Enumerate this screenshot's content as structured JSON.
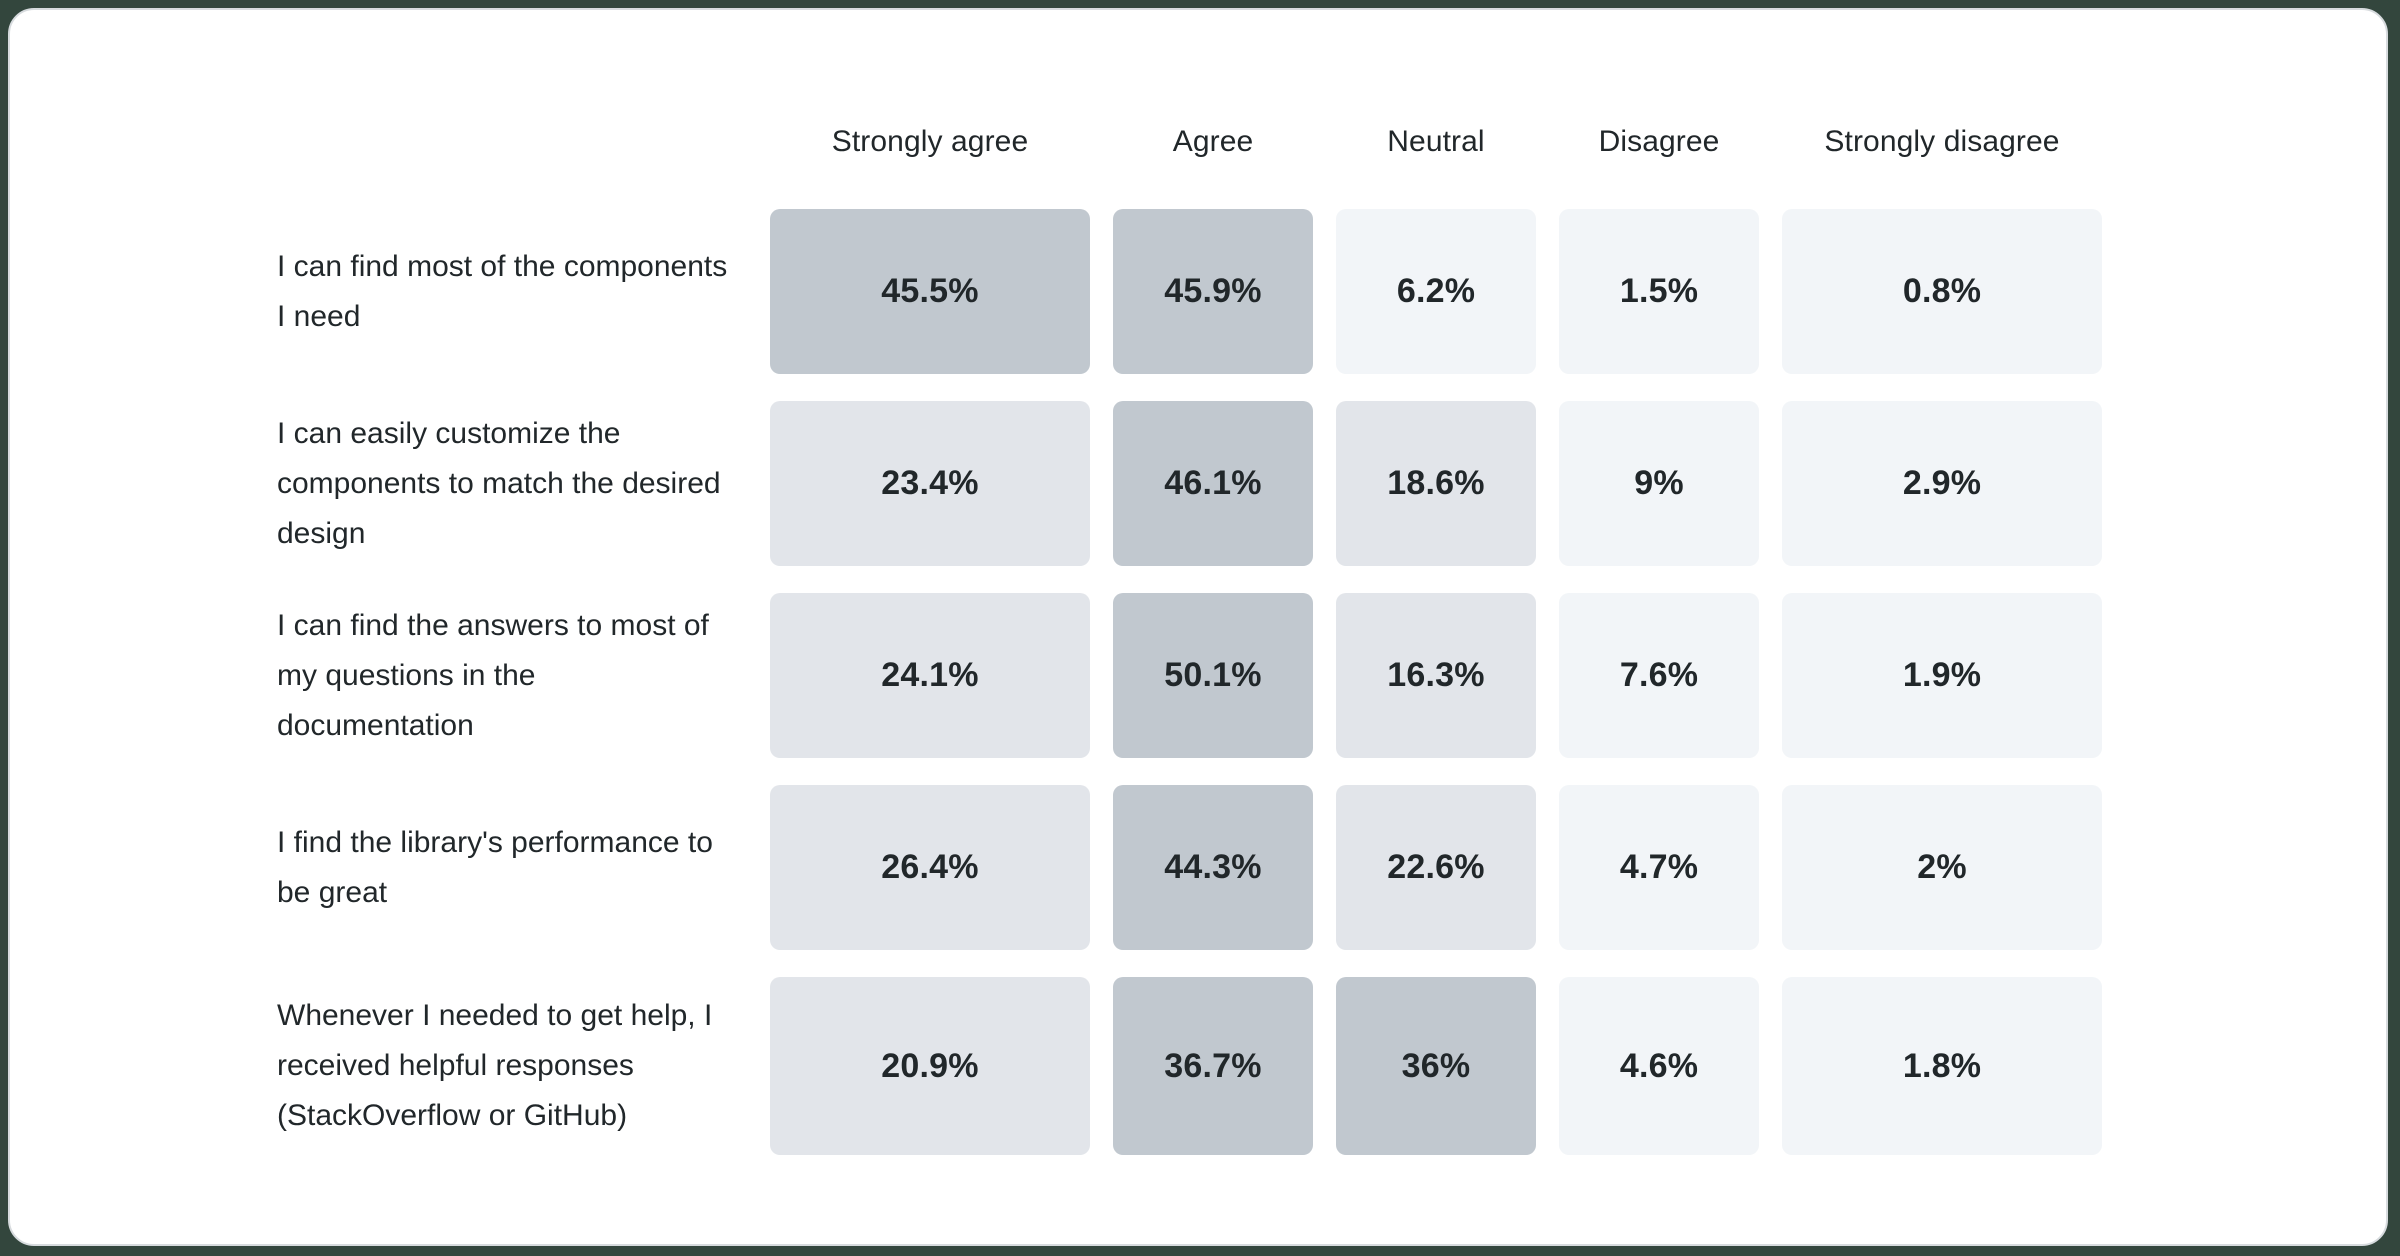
{
  "chart_data": {
    "type": "heatmap",
    "title": "",
    "columns": [
      "Strongly agree",
      "Agree",
      "Neutral",
      "Disagree",
      "Strongly disagree"
    ],
    "rows": [
      {
        "label": "I can find most of the components I need",
        "display": [
          "45.5%",
          "45.9%",
          "6.2%",
          "1.5%",
          "0.8%"
        ],
        "values": [
          45.5,
          45.9,
          6.2,
          1.5,
          0.8
        ]
      },
      {
        "label": "I can easily customize the components to match the desired design",
        "display": [
          "23.4%",
          "46.1%",
          "18.6%",
          "9%",
          "2.9%"
        ],
        "values": [
          23.4,
          46.1,
          18.6,
          9,
          2.9
        ]
      },
      {
        "label": "I can find the answers to most of my questions in the documentation",
        "display": [
          "24.1%",
          "50.1%",
          "16.3%",
          "7.6%",
          "1.9%"
        ],
        "values": [
          24.1,
          50.1,
          16.3,
          7.6,
          1.9
        ]
      },
      {
        "label": "I find the library's performance to be great",
        "display": [
          "26.4%",
          "44.3%",
          "22.6%",
          "4.7%",
          "2%"
        ],
        "values": [
          26.4,
          44.3,
          22.6,
          4.7,
          2
        ]
      },
      {
        "label": "Whenever I needed to get help, I received helpful responses (StackOverflow or GitHub)",
        "display": [
          "20.9%",
          "36.7%",
          "36%",
          "4.6%",
          "1.8%"
        ],
        "values": [
          20.9,
          36.7,
          36,
          4.6,
          1.8
        ]
      }
    ],
    "color_scale": {
      "buckets": [
        {
          "min": 30,
          "color": "#c1c8cf"
        },
        {
          "min": 10,
          "color": "#e2e5ea"
        },
        {
          "min": 0,
          "color": "#f2f5f8"
        }
      ],
      "text_color": "#21272a"
    },
    "legend_position": "none",
    "grid": false
  }
}
